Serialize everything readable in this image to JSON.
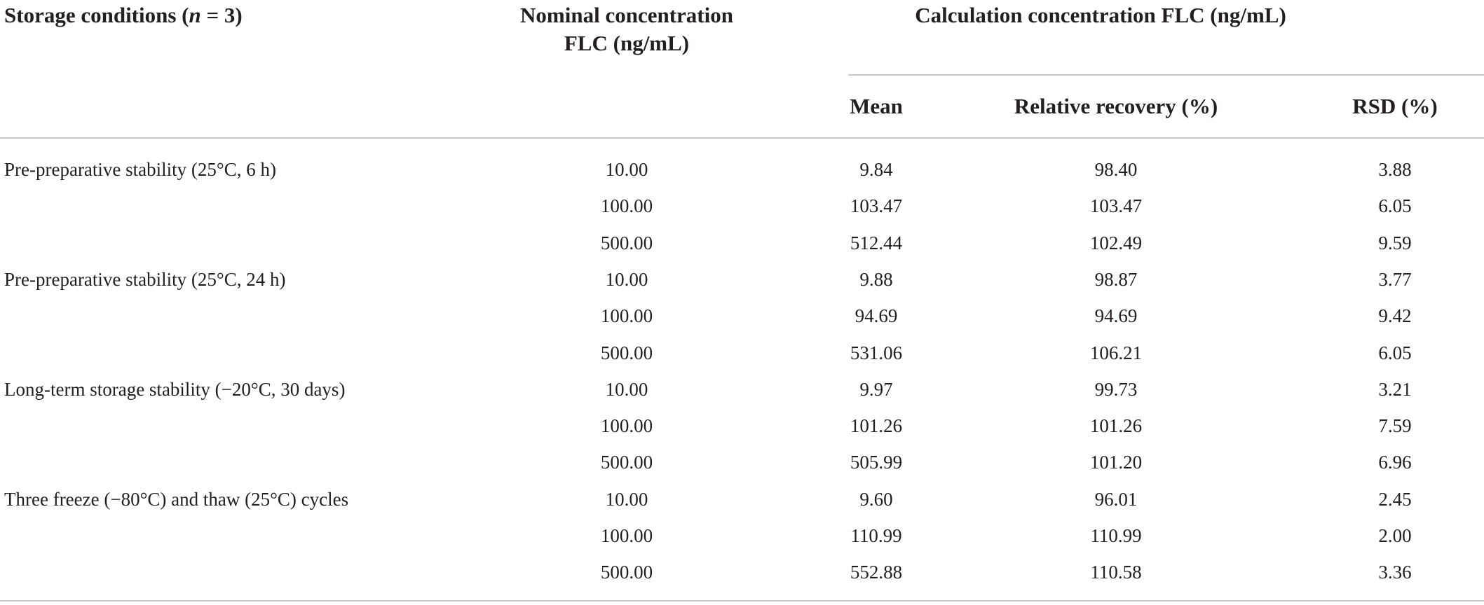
{
  "table": {
    "headers": {
      "storage_conditions_pre": "Storage conditions (",
      "storage_conditions_n": "n",
      "storage_conditions_post": " = 3)",
      "nominal_line1": "Nominal concentration",
      "nominal_line2": "FLC (ng/mL)",
      "calculation_group": "Calculation concentration FLC (ng/mL)",
      "mean": "Mean",
      "relative_recovery": "Relative recovery (%)",
      "rsd": "RSD (%)"
    },
    "rows": [
      {
        "condition": "Pre-preparative stability (25°C, 6 h)",
        "nominal": "10.00",
        "mean": "9.84",
        "recovery": "98.40",
        "rsd": "3.88"
      },
      {
        "condition": "",
        "nominal": "100.00",
        "mean": "103.47",
        "recovery": "103.47",
        "rsd": "6.05"
      },
      {
        "condition": "",
        "nominal": "500.00",
        "mean": "512.44",
        "recovery": "102.49",
        "rsd": "9.59"
      },
      {
        "condition": "Pre-preparative stability (25°C, 24 h)",
        "nominal": "10.00",
        "mean": "9.88",
        "recovery": "98.87",
        "rsd": "3.77"
      },
      {
        "condition": "",
        "nominal": "100.00",
        "mean": "94.69",
        "recovery": "94.69",
        "rsd": "9.42"
      },
      {
        "condition": "",
        "nominal": "500.00",
        "mean": "531.06",
        "recovery": "106.21",
        "rsd": "6.05"
      },
      {
        "condition": "Long-term storage stability (−20°C, 30 days)",
        "nominal": "10.00",
        "mean": "9.97",
        "recovery": "99.73",
        "rsd": "3.21"
      },
      {
        "condition": "",
        "nominal": "100.00",
        "mean": "101.26",
        "recovery": "101.26",
        "rsd": "7.59"
      },
      {
        "condition": "",
        "nominal": "500.00",
        "mean": "505.99",
        "recovery": "101.20",
        "rsd": "6.96"
      },
      {
        "condition": "Three freeze (−80°C) and thaw (25°C) cycles",
        "nominal": "10.00",
        "mean": "9.60",
        "recovery": "96.01",
        "rsd": "2.45"
      },
      {
        "condition": "",
        "nominal": "100.00",
        "mean": "110.99",
        "recovery": "110.99",
        "rsd": "2.00"
      },
      {
        "condition": "",
        "nominal": "500.00",
        "mean": "552.88",
        "recovery": "110.58",
        "rsd": "3.36"
      }
    ]
  }
}
